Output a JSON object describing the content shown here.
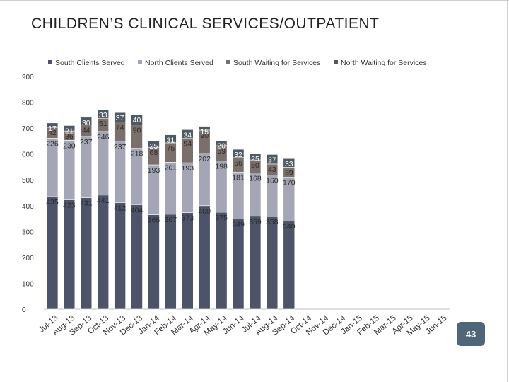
{
  "slide": {
    "title": "CHILDREN’S CLINICAL SERVICES/OUTPATIENT",
    "page_number": "43"
  },
  "chart_data": {
    "type": "bar",
    "stacked": true,
    "categories": [
      "Jul-13",
      "Aug-13",
      "Sep-13",
      "Oct-13",
      "Nov-13",
      "Dec-13",
      "Jan-14",
      "Feb-14",
      "Mar-14",
      "Apr-14",
      "May-14",
      "Jun-14",
      "Jul-14",
      "Aug-14",
      "Sep-14",
      "Oct-14",
      "Nov-14",
      "Dec-14",
      "Jan-15",
      "Feb-15",
      "Mar-15",
      "Apr-15",
      "May-15",
      "Jun-15"
    ],
    "series": [
      {
        "name": "South Clients Served",
        "color": "#4d5469",
        "values": [
          435,
          423,
          431,
          441,
          412,
          404,
          365,
          367,
          373,
          400,
          375,
          349,
          359,
          358,
          340,
          null,
          null,
          null,
          null,
          null,
          null,
          null,
          null,
          null
        ]
      },
      {
        "name": "North Clients Served",
        "color": "#a4a6b5",
        "values": [
          226,
          230,
          237,
          246,
          237,
          218,
          193,
          201,
          193,
          202,
          198,
          181,
          168,
          160,
          170,
          null,
          null,
          null,
          null,
          null,
          null,
          null,
          null,
          null
        ]
      },
      {
        "name": "South Waiting for Services",
        "color": "#7a6f6a",
        "values": [
          42,
          36,
          44,
          51,
          74,
          90,
          68,
          75,
          94,
          90,
          59,
          56,
          50,
          43,
          39,
          null,
          null,
          null,
          null,
          null,
          null,
          null,
          null,
          null
        ]
      },
      {
        "name": "North Waiting for Services",
        "color": "#4e5a63",
        "values": [
          17,
          21,
          30,
          33,
          37,
          40,
          25,
          31,
          34,
          15,
          20,
          32,
          25,
          37,
          33,
          null,
          null,
          null,
          null,
          null,
          null,
          null,
          null,
          null
        ]
      }
    ],
    "ylim": [
      0,
      900
    ],
    "yticks": [
      0,
      100,
      200,
      300,
      400,
      500,
      600,
      700,
      800,
      900
    ],
    "legend_position": "top",
    "grid": false
  }
}
